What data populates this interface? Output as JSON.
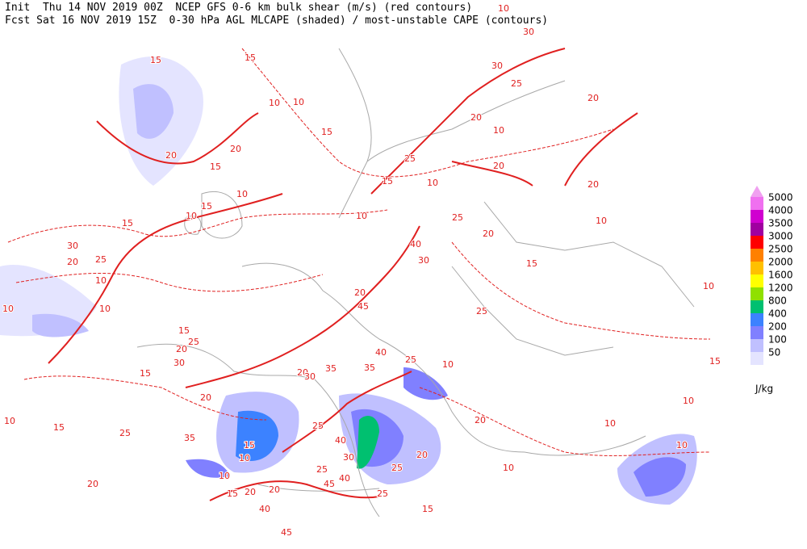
{
  "header": {
    "line1": "Init  Thu 14 NOV 2019 00Z  NCEP GFS 0-6 km bulk shear (m/s) (red contours)",
    "line2": "Fcst Sat 16 NOV 2019 15Z  0-30 hPa AGL MLCAPE (shaded) / most-unstable CAPE (contours)"
  },
  "legend": {
    "levels": [
      5000,
      4000,
      3500,
      3000,
      2500,
      2000,
      1600,
      1200,
      800,
      400,
      200,
      100,
      50
    ],
    "colors": [
      "#f070f0",
      "#d000d0",
      "#a000a0",
      "#ff0000",
      "#ff8000",
      "#ffc000",
      "#ffff00",
      "#90e000",
      "#00c070",
      "#3c82ff",
      "#8080ff",
      "#c0c0ff",
      "#e4e4ff"
    ],
    "top_color": "#f0a0f0",
    "unit": "J/kg"
  },
  "contour_labels": [
    15,
    15,
    10,
    10,
    15,
    15,
    20,
    20,
    10,
    15,
    10,
    15,
    30,
    20,
    25,
    10,
    10,
    10,
    10,
    30,
    30,
    25,
    20,
    20,
    10,
    25,
    20,
    20,
    10,
    15,
    10,
    25,
    20,
    10,
    15,
    30,
    40,
    10,
    25,
    45,
    20,
    15,
    10,
    40,
    25,
    20,
    30,
    35,
    35,
    20,
    25,
    15,
    30,
    15,
    20,
    10,
    15,
    25,
    35,
    15,
    10,
    10,
    15,
    20,
    20,
    40,
    45,
    40,
    30,
    40,
    25,
    25,
    25,
    20,
    25,
    15,
    45,
    10,
    20,
    10,
    10,
    10,
    20
  ]
}
